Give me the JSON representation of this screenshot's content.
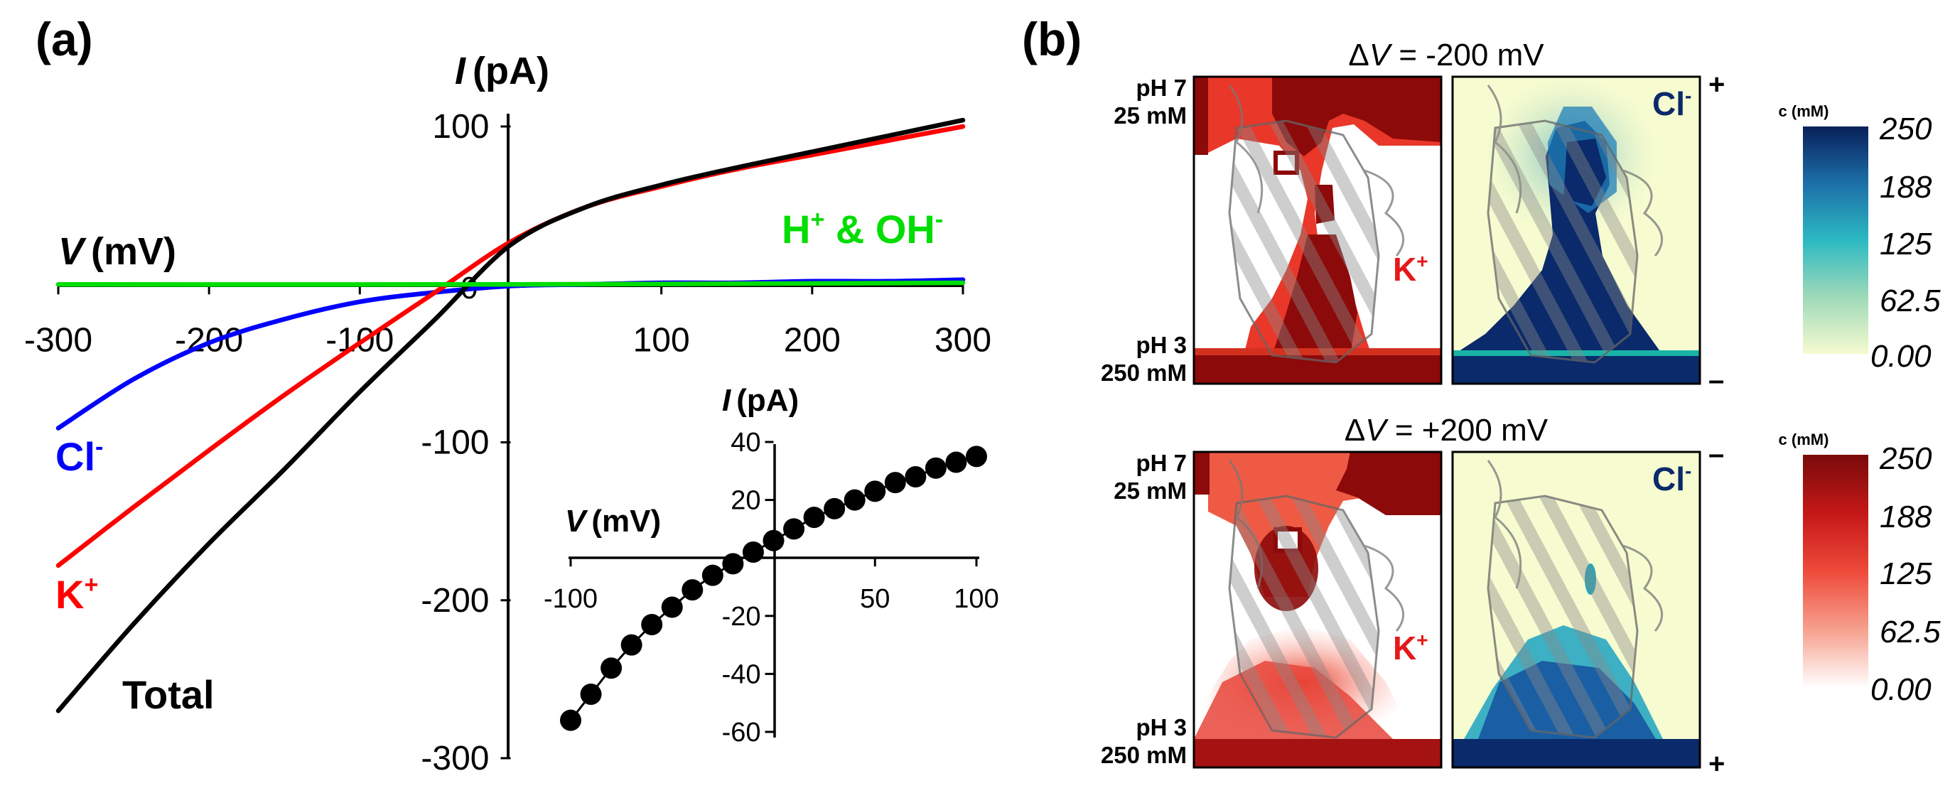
{
  "panel_a": {
    "label": "(a)",
    "chart_data": {
      "type": "line",
      "xlabel": "V",
      "xlabel_unit": "(mV)",
      "ylabel": "I",
      "ylabel_unit": "(pA)",
      "xlim": [
        -300,
        300
      ],
      "ylim": [
        -300,
        100
      ],
      "x_ticks": [
        -300,
        -200,
        -100,
        100,
        200,
        300
      ],
      "x_tick_labels": [
        "-300",
        "-200",
        "-100",
        "100",
        "200",
        "300"
      ],
      "y_ticks": [
        100,
        -100,
        -200,
        -300
      ],
      "y_tick_labels": [
        "100",
        "-100",
        "-200",
        "-300"
      ],
      "origin_label": "0",
      "series": [
        {
          "name": "Total",
          "label": "Total",
          "color": "#000000",
          "x": [
            -300,
            -250,
            -200,
            -150,
            -100,
            -50,
            0,
            50,
            100,
            150,
            200,
            250,
            300
          ],
          "y": [
            -270,
            -215,
            -164,
            -117,
            -68,
            -22,
            25,
            49,
            63,
            74,
            84,
            94,
            104
          ]
        },
        {
          "name": "K+",
          "label": "K",
          "label_sup": "+",
          "color": "#ff0000",
          "x": [
            -300,
            -250,
            -200,
            -150,
            -100,
            -50,
            0,
            50,
            100,
            150,
            200,
            250,
            300
          ],
          "y": [
            -178,
            -141,
            -105,
            -70,
            -37,
            -5,
            27,
            49,
            62,
            73,
            82,
            91,
            100
          ]
        },
        {
          "name": "Cl-",
          "label": "Cl",
          "label_sup": "-",
          "color": "#0000ff",
          "x": [
            -300,
            -250,
            -200,
            -150,
            -100,
            -50,
            0,
            50,
            100,
            150,
            200,
            250,
            300
          ],
          "y": [
            -91,
            -60,
            -37,
            -22,
            -11,
            -5,
            -1,
            0,
            1,
            1,
            2,
            2,
            3
          ]
        },
        {
          "name": "H+ & OH-",
          "label": "H",
          "label_sup": "+",
          "label_mid": " & OH",
          "label_sup2": "-",
          "color": "#00dd00",
          "x": [
            -300,
            0,
            300
          ],
          "y": [
            0,
            0,
            1
          ]
        }
      ]
    },
    "inset_chart_data": {
      "type": "scatter",
      "xlabel": "V",
      "xlabel_unit": "(mV)",
      "ylabel": "I",
      "ylabel_unit": "(pA)",
      "xlim": [
        -100,
        100
      ],
      "ylim": [
        -60,
        40
      ],
      "x_ticks": [
        -100,
        50,
        100
      ],
      "x_tick_labels": [
        "-100",
        "50",
        "100"
      ],
      "y_ticks": [
        40,
        20,
        -20,
        -40,
        -60
      ],
      "y_tick_labels": [
        "40",
        "20",
        "-20",
        "-40",
        "-60"
      ],
      "color": "#000000",
      "x": [
        -100,
        -90,
        -80,
        -70,
        -60,
        -50,
        -40,
        -30,
        -20,
        -10,
        0,
        10,
        20,
        30,
        40,
        50,
        60,
        70,
        80,
        90,
        100
      ],
      "y": [
        -56,
        -47,
        -38,
        -30,
        -23,
        -17,
        -11,
        -6,
        -2,
        2,
        6,
        10,
        14,
        17,
        20,
        23,
        26,
        28,
        31,
        33,
        35
      ]
    }
  },
  "panel_b": {
    "label": "(b)",
    "rows": [
      {
        "title_delta": "Δ",
        "title_v": "V",
        "title_rest": " = -200 mV",
        "top_sign": "+",
        "bottom_sign": "–"
      },
      {
        "title_delta": "Δ",
        "title_v": "V",
        "title_rest": " = +200 mV",
        "top_sign": "–",
        "bottom_sign": "+"
      }
    ],
    "side_top": [
      "pH 7",
      "25 mM"
    ],
    "side_bottom": [
      "pH 3",
      "250 mM"
    ],
    "k_label": "K",
    "k_sup": "+",
    "cl_label": "Cl",
    "cl_sup": "-",
    "colorbars": [
      {
        "title": "c (mM)",
        "ticks": [
          "250",
          "188",
          "125",
          "62.5",
          "0.00"
        ],
        "colors": [
          "#08205a",
          "#1d6fa8",
          "#2cb9c2",
          "#9fd9b9",
          "#f6fbd0"
        ]
      },
      {
        "title": "c (mM)",
        "ticks": [
          "250",
          "188",
          "125",
          "62.5",
          "0.00"
        ],
        "colors": [
          "#7a0a0a",
          "#c41818",
          "#ee4a3a",
          "#f7a08e",
          "#ffffff"
        ]
      }
    ],
    "colors": {
      "k_red": "#e51919",
      "cl_blue": "#0b2a6b",
      "dark_red": "#8b0a0a"
    }
  }
}
